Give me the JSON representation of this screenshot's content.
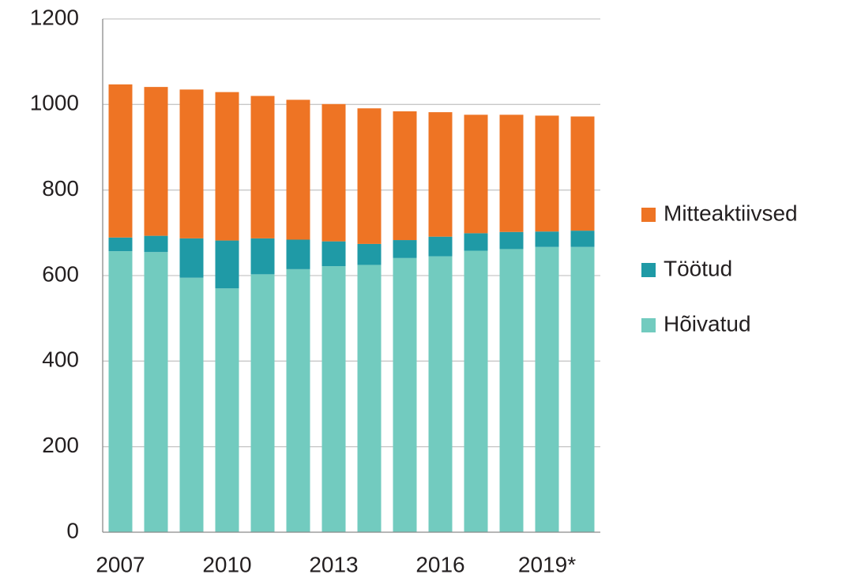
{
  "chart_data": {
    "type": "stacked_bar",
    "categories": [
      "2007",
      null,
      null,
      "2010",
      null,
      null,
      "2013",
      null,
      null,
      "2016",
      null,
      null,
      "2019*",
      null
    ],
    "series": [
      {
        "name": "Hõivatud",
        "color": "#72cbbf",
        "values": [
          657,
          655,
          595,
          570,
          603,
          615,
          622,
          625,
          641,
          645,
          658,
          662,
          667,
          667
        ]
      },
      {
        "name": "Töötud",
        "color": "#1f9aa6",
        "values": [
          32,
          38,
          92,
          112,
          84,
          69,
          58,
          49,
          42,
          46,
          41,
          40,
          36,
          38
        ]
      },
      {
        "name": "Mitteaktiivsed",
        "color": "#ee7424",
        "values": [
          358,
          348,
          348,
          347,
          333,
          327,
          321,
          317,
          301,
          291,
          277,
          274,
          271,
          267
        ]
      }
    ],
    "ylim": [
      0,
      1200
    ],
    "yticks": [
      0,
      200,
      400,
      600,
      800,
      1000,
      1200
    ],
    "grid": true,
    "legend": "right"
  }
}
